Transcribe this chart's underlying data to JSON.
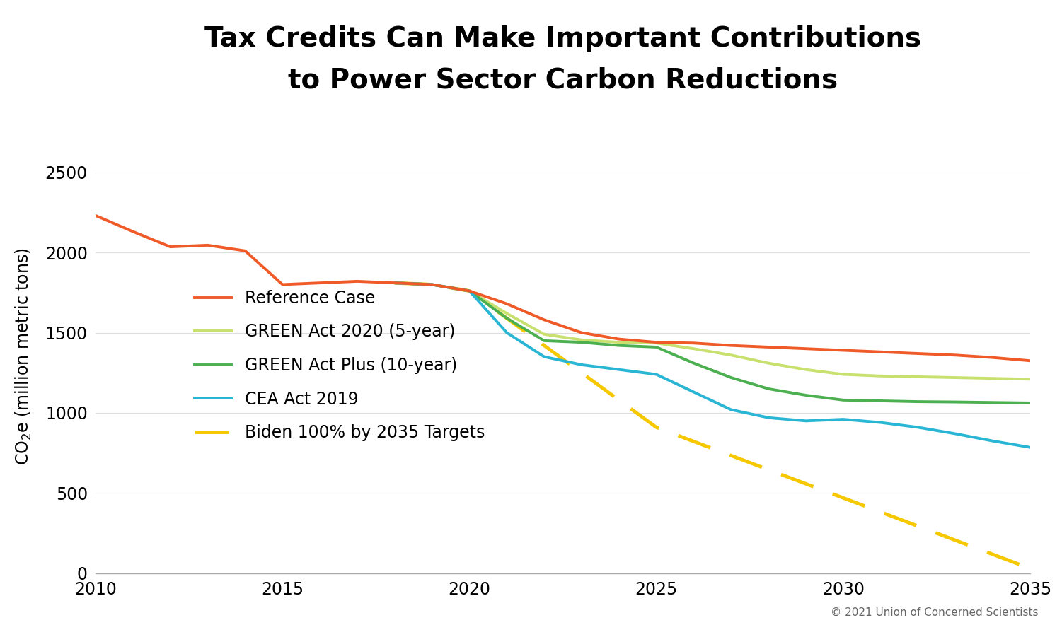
{
  "title_line1": "Tax Credits Can Make Important Contributions",
  "title_line2": "to Power Sector Carbon Reductions",
  "copyright": "© 2021 Union of Concerned Scientists",
  "xlim": [
    2010,
    2035
  ],
  "ylim": [
    0,
    2700
  ],
  "yticks": [
    0,
    500,
    1000,
    1500,
    2000,
    2500
  ],
  "xticks": [
    2010,
    2015,
    2020,
    2025,
    2030,
    2035
  ],
  "background_color": "#ffffff",
  "reference_case": {
    "label": "Reference Case",
    "color": "#f05a28",
    "x": [
      2010,
      2011,
      2012,
      2013,
      2014,
      2015,
      2016,
      2017,
      2018,
      2019,
      2020,
      2021,
      2022,
      2023,
      2024,
      2025,
      2026,
      2027,
      2028,
      2029,
      2030,
      2031,
      2032,
      2033,
      2034,
      2035
    ],
    "y": [
      2230,
      2130,
      2035,
      2045,
      2010,
      1800,
      1810,
      1820,
      1810,
      1800,
      1760,
      1680,
      1580,
      1500,
      1460,
      1440,
      1435,
      1420,
      1410,
      1400,
      1390,
      1380,
      1370,
      1360,
      1345,
      1325
    ]
  },
  "green_act_5yr": {
    "label": "GREEN Act 2020 (5-year)",
    "color": "#c8e06e",
    "x": [
      2018,
      2019,
      2020,
      2021,
      2022,
      2023,
      2024,
      2025,
      2026,
      2027,
      2028,
      2029,
      2030,
      2031,
      2032,
      2033,
      2034,
      2035
    ],
    "y": [
      1810,
      1800,
      1760,
      1620,
      1490,
      1455,
      1440,
      1435,
      1400,
      1360,
      1310,
      1270,
      1240,
      1230,
      1225,
      1220,
      1215,
      1210
    ]
  },
  "green_act_10yr": {
    "label": "GREEN Act Plus (10-year)",
    "color": "#4caf50",
    "x": [
      2018,
      2019,
      2020,
      2021,
      2022,
      2023,
      2024,
      2025,
      2026,
      2027,
      2028,
      2029,
      2030,
      2031,
      2032,
      2033,
      2034,
      2035
    ],
    "y": [
      1810,
      1800,
      1760,
      1590,
      1450,
      1440,
      1420,
      1410,
      1310,
      1220,
      1150,
      1110,
      1080,
      1075,
      1070,
      1068,
      1065,
      1062
    ]
  },
  "cea_act": {
    "label": "CEA Act 2019",
    "color": "#29b6d4",
    "x": [
      2018,
      2019,
      2020,
      2021,
      2022,
      2023,
      2024,
      2025,
      2026,
      2027,
      2028,
      2029,
      2030,
      2031,
      2032,
      2033,
      2034,
      2035
    ],
    "y": [
      1810,
      1800,
      1760,
      1500,
      1350,
      1300,
      1270,
      1240,
      1130,
      1020,
      970,
      950,
      960,
      940,
      910,
      870,
      825,
      785
    ]
  },
  "biden": {
    "label": "Biden 100% by 2035 Targets",
    "color": "#f5c800",
    "x": [
      2018,
      2019,
      2020,
      2021,
      2022,
      2023,
      2024,
      2025,
      2035
    ],
    "y": [
      1810,
      1800,
      1760,
      1590,
      1420,
      1250,
      1080,
      910,
      30
    ]
  },
  "line_width": 2.8
}
